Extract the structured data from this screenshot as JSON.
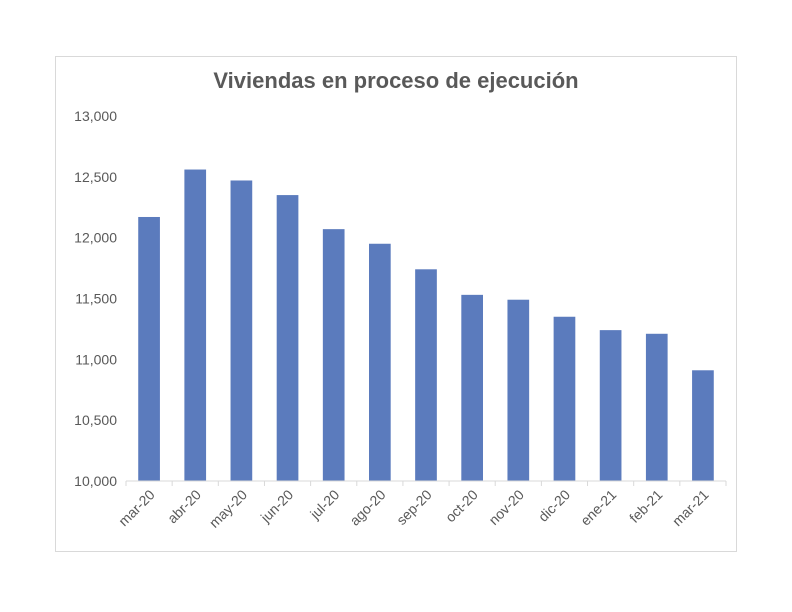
{
  "chart_data": {
    "type": "bar",
    "title": "Viviendas en proceso de ejecución",
    "xlabel": "",
    "ylabel": "",
    "categories": [
      "mar-20",
      "abr-20",
      "may-20",
      "jun-20",
      "jul-20",
      "ago-20",
      "sep-20",
      "oct-20",
      "nov-20",
      "dic-20",
      "ene-21",
      "feb-21",
      "mar-21"
    ],
    "series": [
      {
        "values": [
          12170,
          12560,
          12470,
          12350,
          12070,
          11950,
          11740,
          11530,
          11490,
          11350,
          11240,
          11210,
          10910
        ]
      }
    ],
    "ylim": [
      10000,
      13000
    ],
    "yticks": [
      10000,
      10500,
      11000,
      11500,
      12000,
      12500,
      13000
    ],
    "ytick_labels": [
      "10,000",
      "10,500",
      "11,000",
      "11,500",
      "12,000",
      "12,500",
      "13,000"
    ],
    "grid": false,
    "legend": "none",
    "bar_color": "#5b7bbd"
  }
}
